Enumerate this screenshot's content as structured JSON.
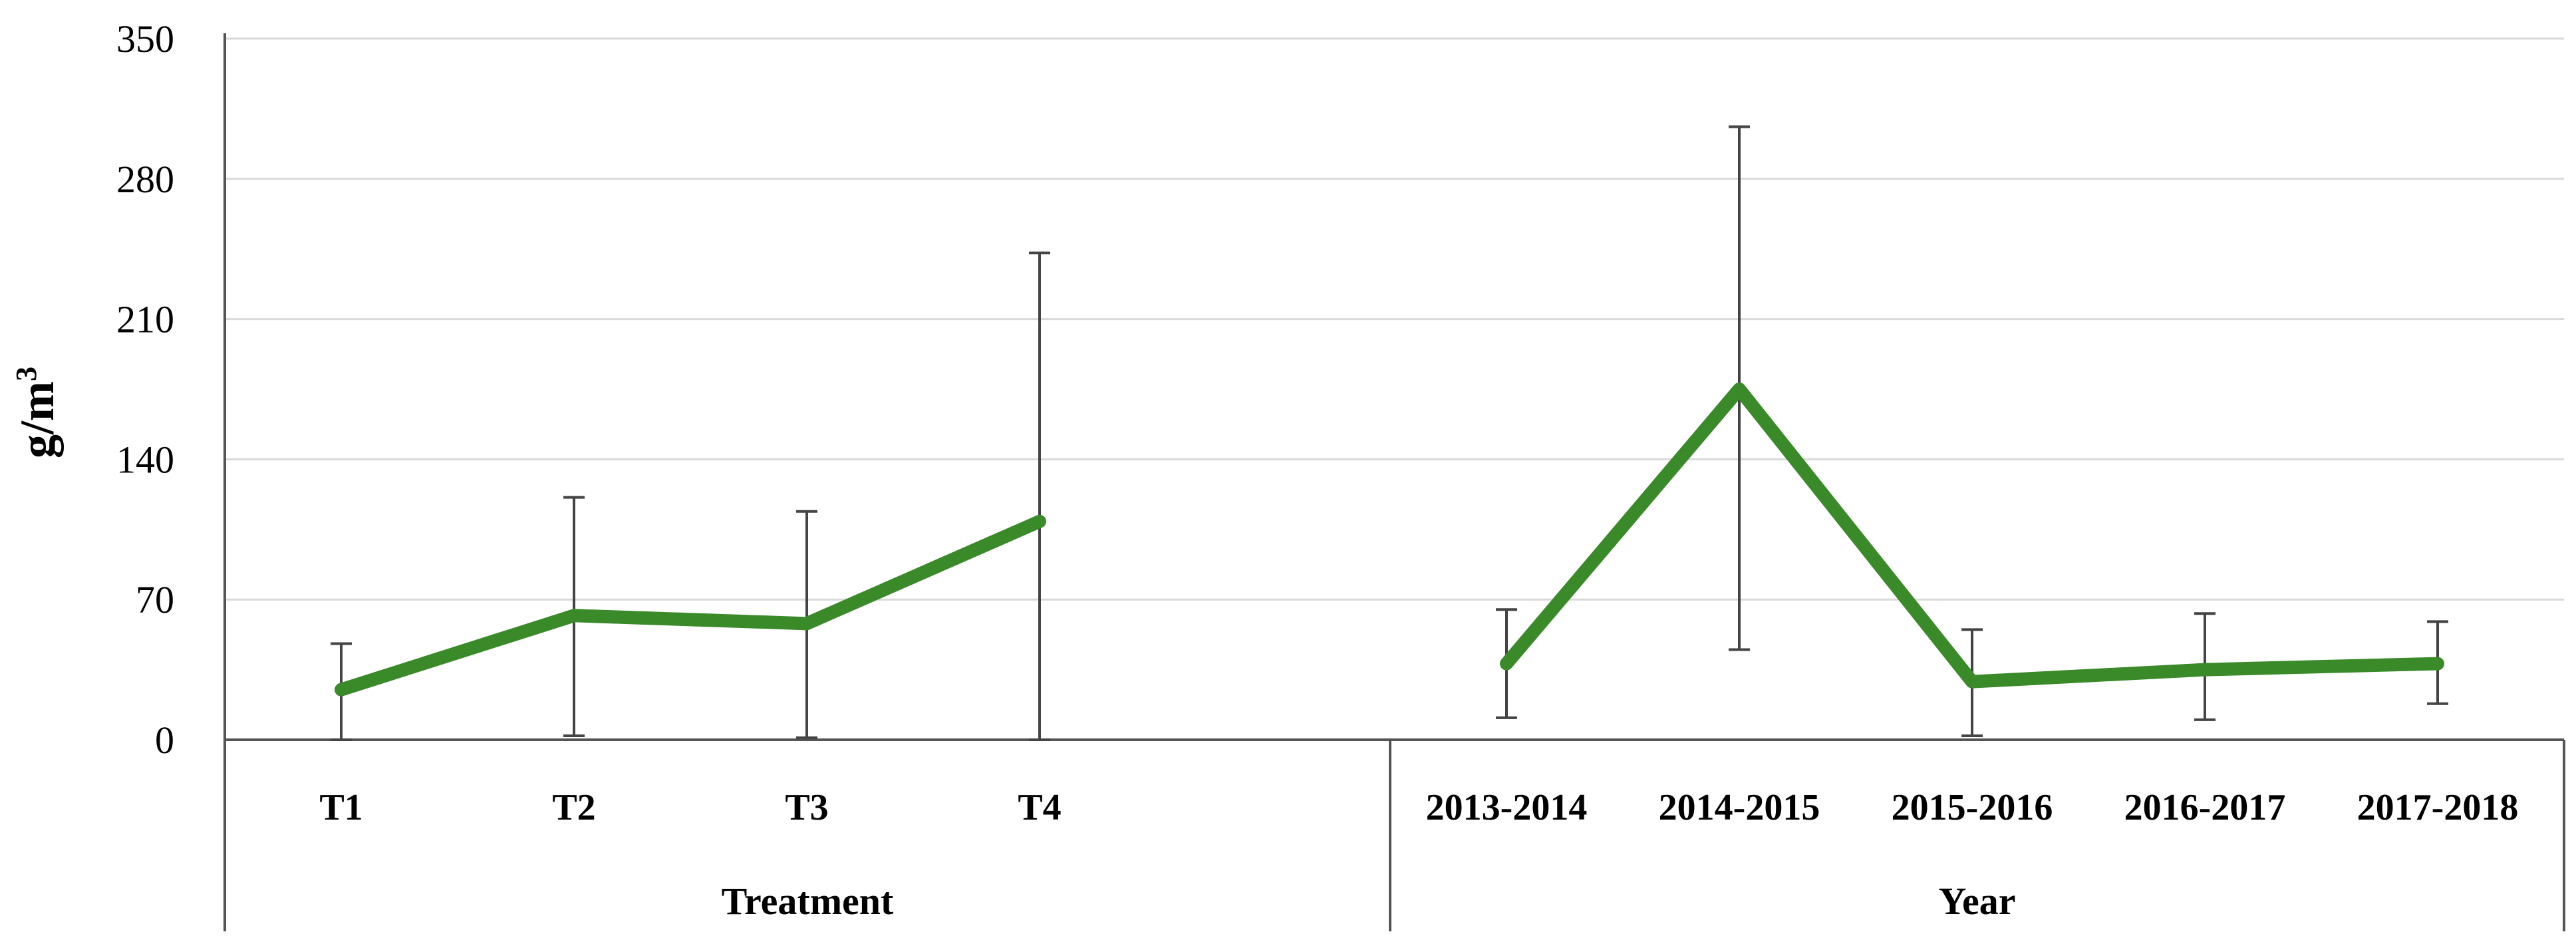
{
  "chart_data": {
    "type": "line",
    "ylabel": "g/m",
    "ylabel_superscript": "3",
    "ylim": [
      0,
      350
    ],
    "yticks": [
      "0",
      "70",
      "140",
      "210",
      "280",
      "350"
    ],
    "grid": true,
    "line_color": "#3a8a2a",
    "groups": [
      {
        "name": "Treatment",
        "categories": [
          "T1",
          "T2",
          "T3",
          "T4"
        ],
        "values": [
          25,
          62,
          58,
          109
        ],
        "error_low": [
          0,
          2,
          1,
          0
        ],
        "error_high": [
          48,
          121,
          114,
          243
        ]
      },
      {
        "name": "Year",
        "categories": [
          "2013-2014",
          "2014-2015",
          "2015-2016",
          "2016-2017",
          "2017-2018"
        ],
        "values": [
          38,
          175,
          29,
          35,
          38
        ],
        "error_low": [
          11,
          45,
          2,
          10,
          18
        ],
        "error_high": [
          65,
          306,
          55,
          63,
          59
        ]
      }
    ]
  }
}
